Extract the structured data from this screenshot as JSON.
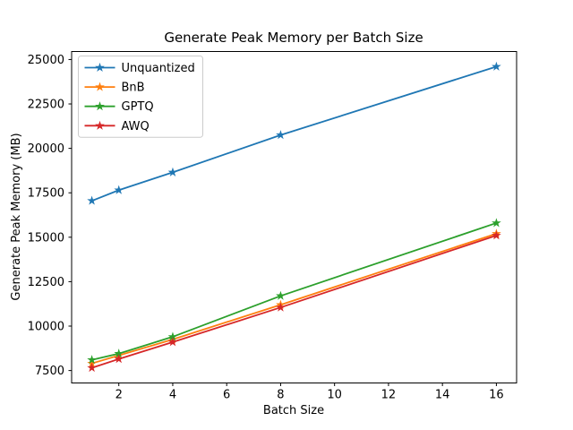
{
  "chart_data": {
    "type": "line",
    "title": "Generate Peak Memory per Batch Size",
    "xlabel": "Batch Size",
    "ylabel": "Generate Peak Memory (MB)",
    "x": [
      1,
      2,
      4,
      8,
      16
    ],
    "series": [
      {
        "name": "Unquantized",
        "color": "#1f77b4",
        "values": [
          17050,
          17650,
          18650,
          20750,
          24600
        ]
      },
      {
        "name": "BnB",
        "color": "#ff7f0e",
        "values": [
          7900,
          8350,
          9250,
          11200,
          15200
        ]
      },
      {
        "name": "GPTQ",
        "color": "#2ca02c",
        "values": [
          8100,
          8450,
          9400,
          11700,
          15800
        ]
      },
      {
        "name": "AWQ",
        "color": "#d62728",
        "values": [
          7650,
          8150,
          9100,
          11050,
          15100
        ]
      }
    ],
    "marker": "star",
    "xlim": [
      0.25,
      16.75
    ],
    "ylim": [
      6800,
      25450
    ],
    "xticks": [
      2,
      4,
      6,
      8,
      10,
      12,
      14,
      16
    ],
    "yticks": [
      7500,
      10000,
      12500,
      15000,
      17500,
      20000,
      22500,
      25000
    ],
    "grid": false,
    "legend_position": "upper left",
    "axis_color": "#000000",
    "legend_border_color": "#cccccc",
    "background_color": "#ffffff"
  }
}
